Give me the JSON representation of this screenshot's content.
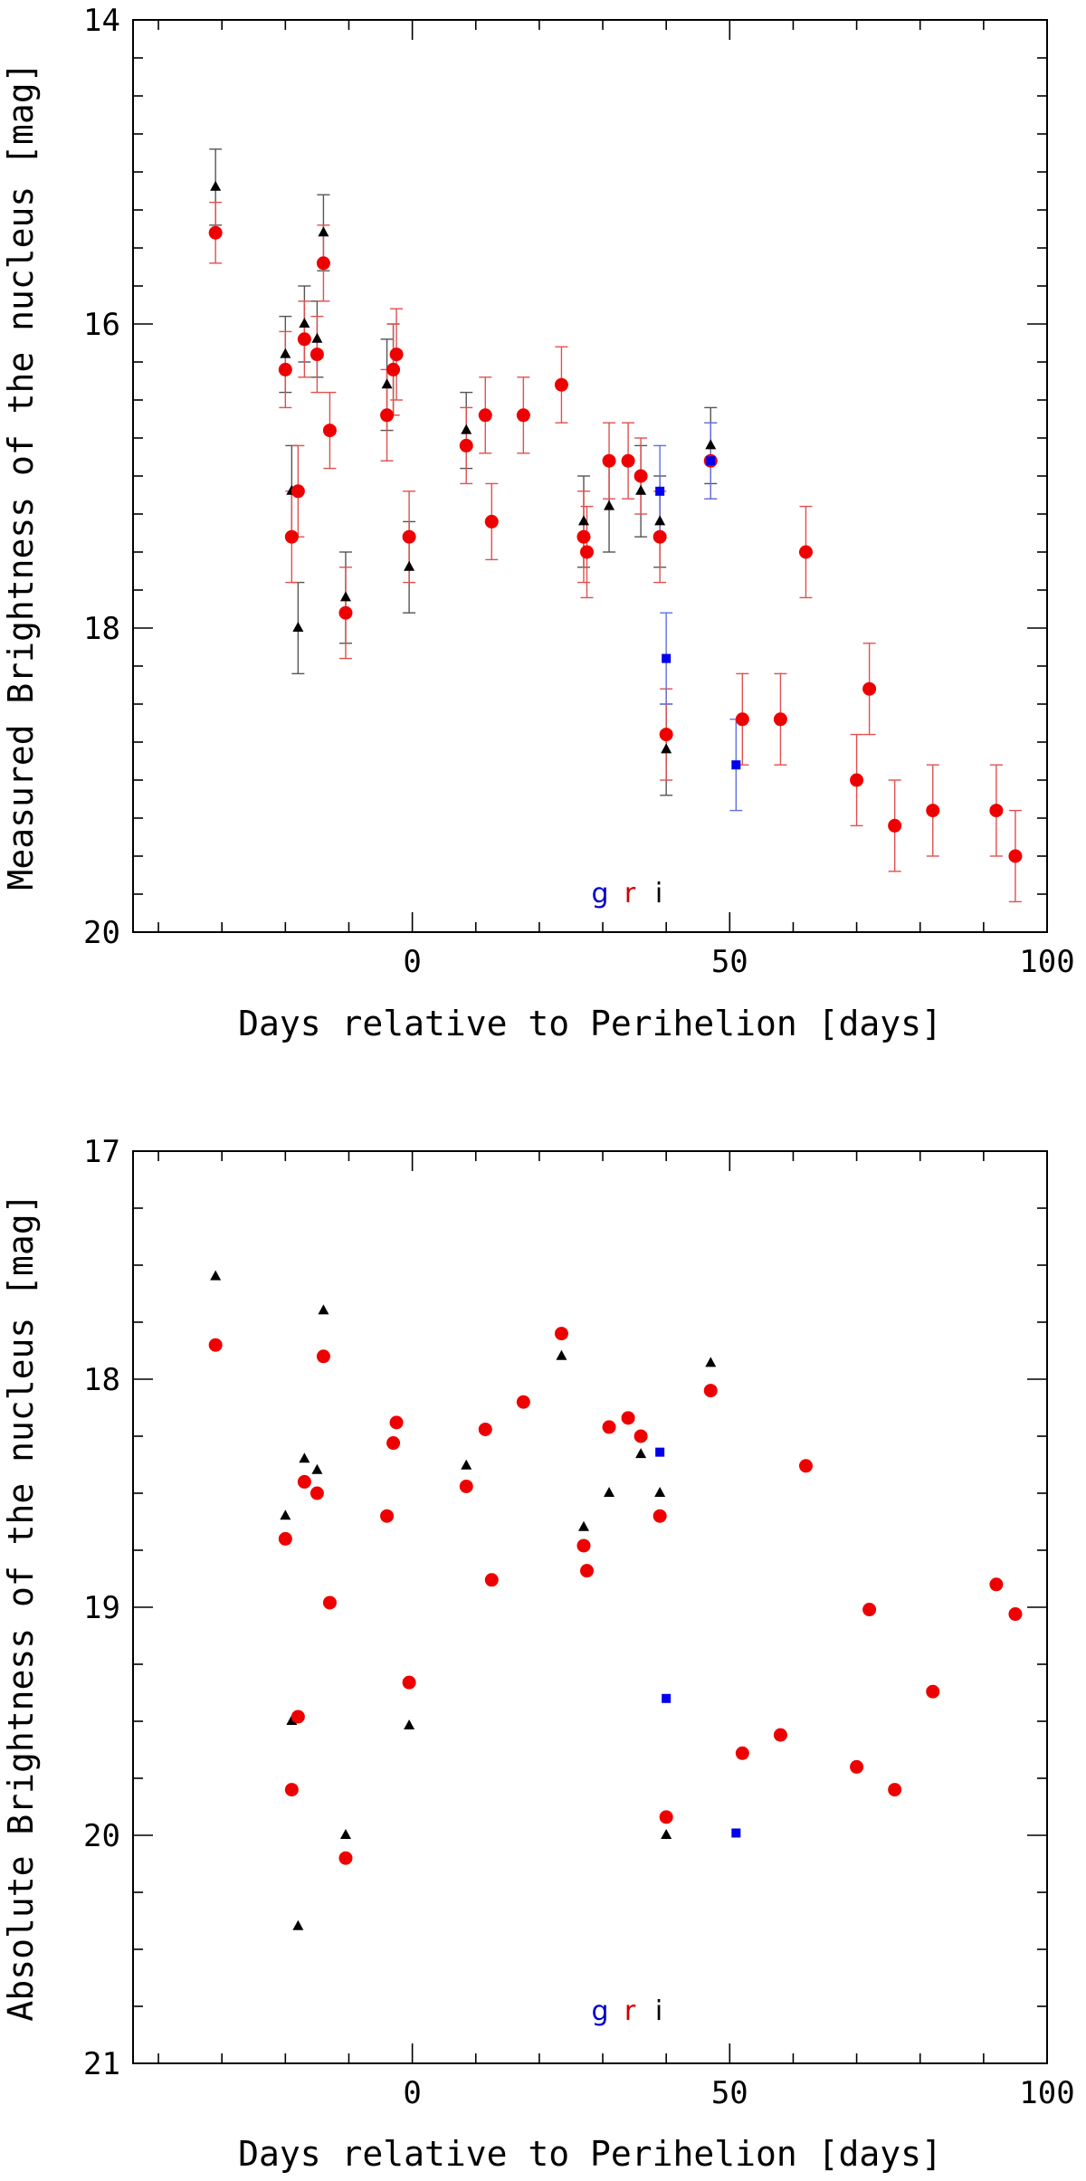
{
  "chart_data": [
    {
      "type": "scatter",
      "xlabel": "Days relative to Perihelion [days]",
      "ylabel": "Measured Brightness of the nucleus [mag]",
      "xlim": [
        -44,
        100
      ],
      "ylim": [
        14,
        20
      ],
      "y_inverted": true,
      "xticks": [
        0,
        50,
        100
      ],
      "yticks": [
        14,
        16,
        18,
        20
      ],
      "legend": [
        {
          "label": "g",
          "color": "#0000cc"
        },
        {
          "label": "r",
          "color": "#d00000"
        },
        {
          "label": "i",
          "color": "#000000"
        }
      ],
      "series": [
        {
          "name": "i",
          "marker": "triangle",
          "color": "#000000",
          "errcolor": "#555555",
          "points": [
            [
              -31,
              15.1,
              0.25
            ],
            [
              -20,
              16.2,
              0.25
            ],
            [
              -19,
              17.1,
              0.3
            ],
            [
              -18,
              18.0,
              0.3
            ],
            [
              -17,
              16.0,
              0.25
            ],
            [
              -15,
              16.1,
              0.25
            ],
            [
              -14,
              15.4,
              0.25
            ],
            [
              -10.5,
              17.8,
              0.3
            ],
            [
              -4,
              16.4,
              0.3
            ],
            [
              -3,
              16.3,
              0.3
            ],
            [
              -0.5,
              17.6,
              0.3
            ],
            [
              8.5,
              16.7,
              0.25
            ],
            [
              27,
              17.3,
              0.3
            ],
            [
              31,
              17.2,
              0.3
            ],
            [
              36,
              17.1,
              0.3
            ],
            [
              39,
              17.3,
              0.3
            ],
            [
              40,
              18.8,
              0.3
            ],
            [
              47,
              16.8,
              0.25
            ]
          ]
        },
        {
          "name": "r",
          "marker": "circle",
          "color": "#ee0000",
          "errcolor": "#e05050",
          "points": [
            [
              -31,
              15.4,
              0.2
            ],
            [
              -20,
              16.3,
              0.25
            ],
            [
              -19,
              17.4,
              0.3
            ],
            [
              -18,
              17.1,
              0.3
            ],
            [
              -17,
              16.1,
              0.25
            ],
            [
              -15,
              16.2,
              0.25
            ],
            [
              -14,
              15.6,
              0.25
            ],
            [
              -13,
              16.7,
              0.25
            ],
            [
              -10.5,
              17.9,
              0.3
            ],
            [
              -4,
              16.6,
              0.3
            ],
            [
              -3,
              16.3,
              0.3
            ],
            [
              -2.5,
              16.2,
              0.3
            ],
            [
              -0.5,
              17.4,
              0.3
            ],
            [
              8.5,
              16.8,
              0.25
            ],
            [
              11.5,
              16.6,
              0.25
            ],
            [
              12.5,
              17.3,
              0.25
            ],
            [
              17.5,
              16.6,
              0.25
            ],
            [
              23.5,
              16.4,
              0.25
            ],
            [
              27,
              17.4,
              0.3
            ],
            [
              27.5,
              17.5,
              0.3
            ],
            [
              31,
              16.9,
              0.25
            ],
            [
              34,
              16.9,
              0.25
            ],
            [
              36,
              17.0,
              0.25
            ],
            [
              39,
              17.4,
              0.3
            ],
            [
              40,
              18.7,
              0.3
            ],
            [
              47,
              16.9,
              0.25
            ],
            [
              52,
              18.6,
              0.3
            ],
            [
              58,
              18.6,
              0.3
            ],
            [
              62,
              17.5,
              0.3
            ],
            [
              70,
              19.0,
              0.3
            ],
            [
              72,
              18.4,
              0.3
            ],
            [
              76,
              19.3,
              0.3
            ],
            [
              82,
              19.2,
              0.3
            ],
            [
              92,
              19.2,
              0.3
            ],
            [
              95,
              19.5,
              0.3
            ]
          ]
        },
        {
          "name": "g",
          "marker": "square",
          "color": "#0000ee",
          "errcolor": "#6070e0",
          "points": [
            [
              39,
              17.1,
              0.3
            ],
            [
              40,
              18.2,
              0.3
            ],
            [
              51,
              18.9,
              0.3
            ],
            [
              47,
              16.9,
              0.25
            ]
          ]
        }
      ]
    },
    {
      "type": "scatter",
      "xlabel": "Days relative to Perihelion [days]",
      "ylabel": "Absolute Brightness of the nucleus [mag]",
      "xlim": [
        -44,
        100
      ],
      "ylim": [
        17,
        21
      ],
      "y_inverted": true,
      "xticks": [
        0,
        50,
        100
      ],
      "yticks": [
        17,
        18,
        19,
        20,
        21
      ],
      "legend": [
        {
          "label": "g",
          "color": "#0000cc"
        },
        {
          "label": "r",
          "color": "#d00000"
        },
        {
          "label": "i",
          "color": "#000000"
        }
      ],
      "series": [
        {
          "name": "i",
          "marker": "triangle",
          "color": "#000000",
          "points": [
            [
              -31,
              17.55
            ],
            [
              -20,
              18.6
            ],
            [
              -19,
              19.5
            ],
            [
              -18,
              20.4
            ],
            [
              -17,
              18.35
            ],
            [
              -15,
              18.4
            ],
            [
              -14,
              17.7
            ],
            [
              -10.5,
              20.0
            ],
            [
              -0.5,
              19.52
            ],
            [
              8.5,
              18.38
            ],
            [
              23.5,
              17.9
            ],
            [
              27,
              18.65
            ],
            [
              31,
              18.5
            ],
            [
              36,
              18.33
            ],
            [
              39,
              18.5
            ],
            [
              40,
              20.0
            ],
            [
              47,
              17.93
            ]
          ]
        },
        {
          "name": "r",
          "marker": "circle",
          "color": "#ee0000",
          "points": [
            [
              -31,
              17.85
            ],
            [
              -20,
              18.7
            ],
            [
              -19,
              19.8
            ],
            [
              -18,
              19.48
            ],
            [
              -17,
              18.45
            ],
            [
              -15,
              18.5
            ],
            [
              -14,
              17.9
            ],
            [
              -13,
              18.98
            ],
            [
              -10.5,
              20.1
            ],
            [
              -4,
              18.6
            ],
            [
              -3,
              18.28
            ],
            [
              -2.5,
              18.19
            ],
            [
              -0.5,
              19.33
            ],
            [
              8.5,
              18.47
            ],
            [
              11.5,
              18.22
            ],
            [
              12.5,
              18.88
            ],
            [
              17.5,
              18.1
            ],
            [
              23.5,
              17.8
            ],
            [
              27,
              18.73
            ],
            [
              27.5,
              18.84
            ],
            [
              31,
              18.21
            ],
            [
              34,
              18.17
            ],
            [
              36,
              18.25
            ],
            [
              39,
              18.6
            ],
            [
              40,
              19.92
            ],
            [
              47,
              18.05
            ],
            [
              52,
              19.64
            ],
            [
              58,
              19.56
            ],
            [
              62,
              18.38
            ],
            [
              70,
              19.7
            ],
            [
              72,
              19.01
            ],
            [
              76,
              19.8
            ],
            [
              82,
              19.37
            ],
            [
              92,
              18.9
            ],
            [
              95,
              19.03
            ]
          ]
        },
        {
          "name": "g",
          "marker": "square",
          "color": "#0000ee",
          "points": [
            [
              39,
              18.32
            ],
            [
              40,
              19.4
            ],
            [
              51,
              19.99
            ]
          ]
        }
      ]
    }
  ]
}
